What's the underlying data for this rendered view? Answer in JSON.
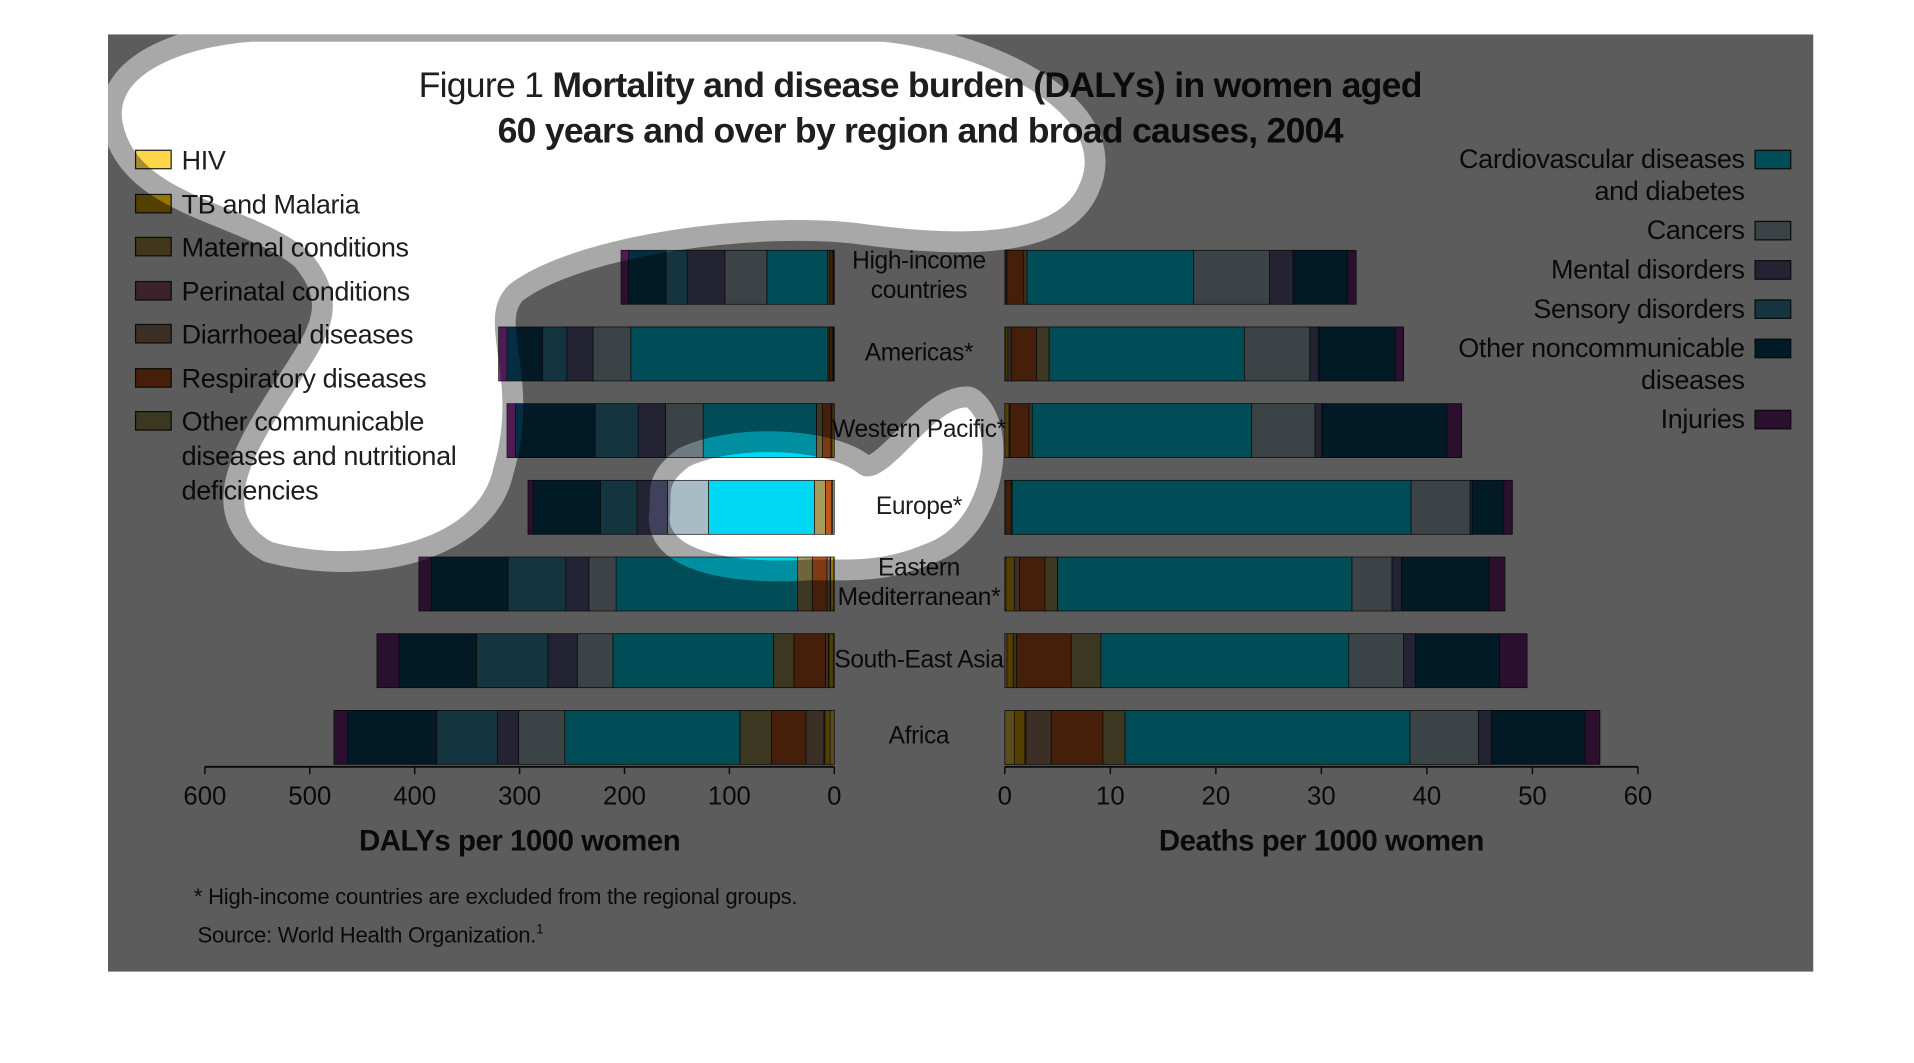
{
  "figure_label": "Figure 1",
  "footnote": "* High-income countries are excluded from the regional groups.",
  "source": "Source: World Health Organization.",
  "source_ref": "1",
  "chart_data": [
    {
      "type": "bar",
      "title": "Mortality and disease burden (DALYs) in women aged 60 years and over by region and broad causes, 2004",
      "xlabel": "DALYs per 1000 women",
      "xlim": [
        0,
        600
      ],
      "xticks": [
        0,
        100,
        200,
        300,
        400,
        500,
        600
      ],
      "xaxis_reversed": true,
      "categories": [
        "High-income countries",
        "Americas*",
        "Western Pacific*",
        "Europe*",
        "Eastern Mediterranean*",
        "South-East Asia",
        "Africa"
      ],
      "series": [
        {
          "name": "HIV",
          "color": "#ffd84a",
          "values": [
            0.3,
            0.5,
            0.2,
            0.2,
            0.5,
            1,
            4
          ]
        },
        {
          "name": "TB and Malaria",
          "color": "#e8b400",
          "values": [
            0.5,
            0.5,
            2,
            1.5,
            3,
            4,
            5
          ]
        },
        {
          "name": "Maternal conditions",
          "color": "#b89a50",
          "values": [
            0,
            0,
            0,
            0,
            0.5,
            0.5,
            1
          ]
        },
        {
          "name": "Perinatal conditions",
          "color": "#a8607a",
          "values": [
            0,
            0,
            0,
            0,
            0,
            0,
            0
          ]
        },
        {
          "name": "Diarrhoeal diseases",
          "color": "#a88468",
          "values": [
            0.5,
            1,
            1,
            0.8,
            3,
            3,
            17
          ]
        },
        {
          "name": "Respiratory diseases",
          "color": "#c0581c",
          "values": [
            3,
            2.5,
            8,
            6,
            14,
            30,
            33
          ]
        },
        {
          "name": "Other communicable diseases and nutritional deficiencies",
          "color": "#a89a5c",
          "values": [
            2,
            1.5,
            5.8,
            10.5,
            14,
            19.5,
            30
          ]
        },
        {
          "name": "Cardiovascular diseases and diabetes",
          "color": "#00d8f4",
          "values": [
            58,
            188,
            108,
            101,
            173,
            153,
            167
          ]
        },
        {
          "name": "Cancers",
          "color": "#a8bcc6",
          "values": [
            40,
            36,
            36,
            39,
            26,
            34,
            44
          ]
        },
        {
          "name": "Mental disorders",
          "color": "#62648e",
          "values": [
            36,
            25,
            26,
            29,
            22,
            28,
            20
          ]
        },
        {
          "name": "Sensory disorders",
          "color": "#3a96b2",
          "values": [
            20,
            23,
            41,
            35,
            55,
            68,
            58
          ]
        },
        {
          "name": "Other noncommunicable diseases",
          "color": "#08466a",
          "values": [
            36,
            34,
            76,
            64,
            73,
            74,
            85
          ]
        },
        {
          "name": "Injuries",
          "color": "#7a2a80",
          "values": [
            7,
            8,
            8,
            5,
            12,
            21,
            13
          ]
        }
      ]
    },
    {
      "type": "bar",
      "xlabel": "Deaths per 1000 women",
      "xlim": [
        0,
        60
      ],
      "xticks": [
        0,
        10,
        20,
        30,
        40,
        50,
        60
      ],
      "series": [
        {
          "color": "#ffd84a",
          "values": [
            0,
            0.1,
            0,
            0,
            0.1,
            0.2,
            0.9
          ]
        },
        {
          "color": "#e8b400",
          "values": [
            0.1,
            0.2,
            0.4,
            0.1,
            0.8,
            0.6,
            1
          ]
        },
        {
          "color": "#b89a50",
          "values": [
            0,
            0,
            0,
            0,
            0,
            0,
            0.1
          ]
        },
        {
          "color": "#a8607a",
          "values": [
            0,
            0,
            0,
            0,
            0,
            0,
            0
          ]
        },
        {
          "color": "#a88468",
          "values": [
            0.1,
            0.3,
            0.1,
            0,
            0.5,
            0.3,
            2.4
          ]
        },
        {
          "color": "#c0581c",
          "values": [
            1.6,
            2.4,
            1.8,
            0.5,
            2.4,
            5.2,
            4.9
          ]
        },
        {
          "color": "#a89a5c",
          "values": [
            0.3,
            1.2,
            0.3,
            0.1,
            1.2,
            2.8,
            2.1
          ]
        },
        {
          "color": "#00d8f4",
          "values": [
            15.8,
            18.5,
            20.8,
            37.8,
            27.9,
            23.5,
            27
          ]
        },
        {
          "color": "#a8bcc6",
          "values": [
            7.2,
            6.2,
            6,
            5.6,
            3.8,
            5.2,
            6.5
          ]
        },
        {
          "color": "#62648e",
          "values": [
            2.2,
            0.8,
            0.6,
            0.2,
            0.9,
            1.1,
            1.2
          ]
        },
        {
          "color": "#3a96b2",
          "values": [
            0.1,
            0.1,
            0.1,
            0,
            0,
            0,
            0.1
          ]
        },
        {
          "color": "#08466a",
          "values": [
            5.1,
            7.2,
            11.8,
            3,
            8.3,
            8,
            8.8
          ]
        },
        {
          "color": "#7a2a80",
          "values": [
            0.8,
            0.8,
            1.4,
            0.8,
            1.5,
            2.6,
            1.4
          ]
        }
      ]
    }
  ]
}
